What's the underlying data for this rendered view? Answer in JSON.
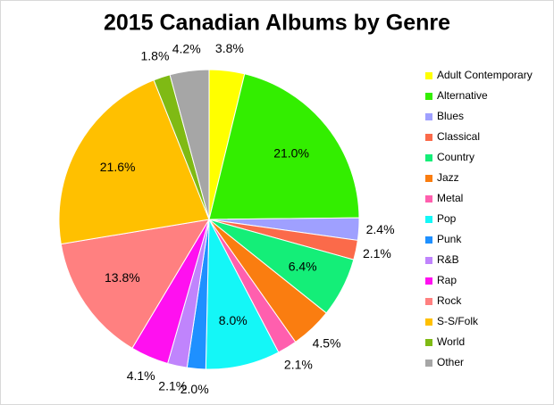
{
  "chart_data": {
    "type": "pie",
    "title": "2015 Canadian Albums by Genre",
    "categories": [
      "Adult Contemporary",
      "Alternative",
      "Blues",
      "Classical",
      "Country",
      "Jazz",
      "Metal",
      "Pop",
      "Punk",
      "R&B",
      "Rap",
      "Rock",
      "S-S/Folk",
      "World",
      "Other"
    ],
    "values": [
      3.8,
      21.0,
      2.4,
      2.1,
      6.4,
      4.5,
      2.1,
      8.0,
      2.0,
      2.1,
      4.1,
      13.8,
      21.6,
      1.8,
      4.2
    ],
    "value_labels": [
      "3.8%",
      "21.0%",
      "2.4%",
      "2.1%",
      "6.4%",
      "4.5%",
      "2.1%",
      "8.0%",
      "2.0%",
      "2.1%",
      "4.1%",
      "13.8%",
      "21.6%",
      "1.8%",
      "4.2%"
    ],
    "colors": [
      "#ffff00",
      "#33ee00",
      "#9fa0ff",
      "#fb6a4a",
      "#14ee78",
      "#fa7d10",
      "#ff5fae",
      "#14f7f7",
      "#1e90ff",
      "#c084fc",
      "#ff10f0",
      "#ff8080",
      "#ffc000",
      "#7fba14",
      "#a6a6a6"
    ],
    "legend": "right"
  }
}
